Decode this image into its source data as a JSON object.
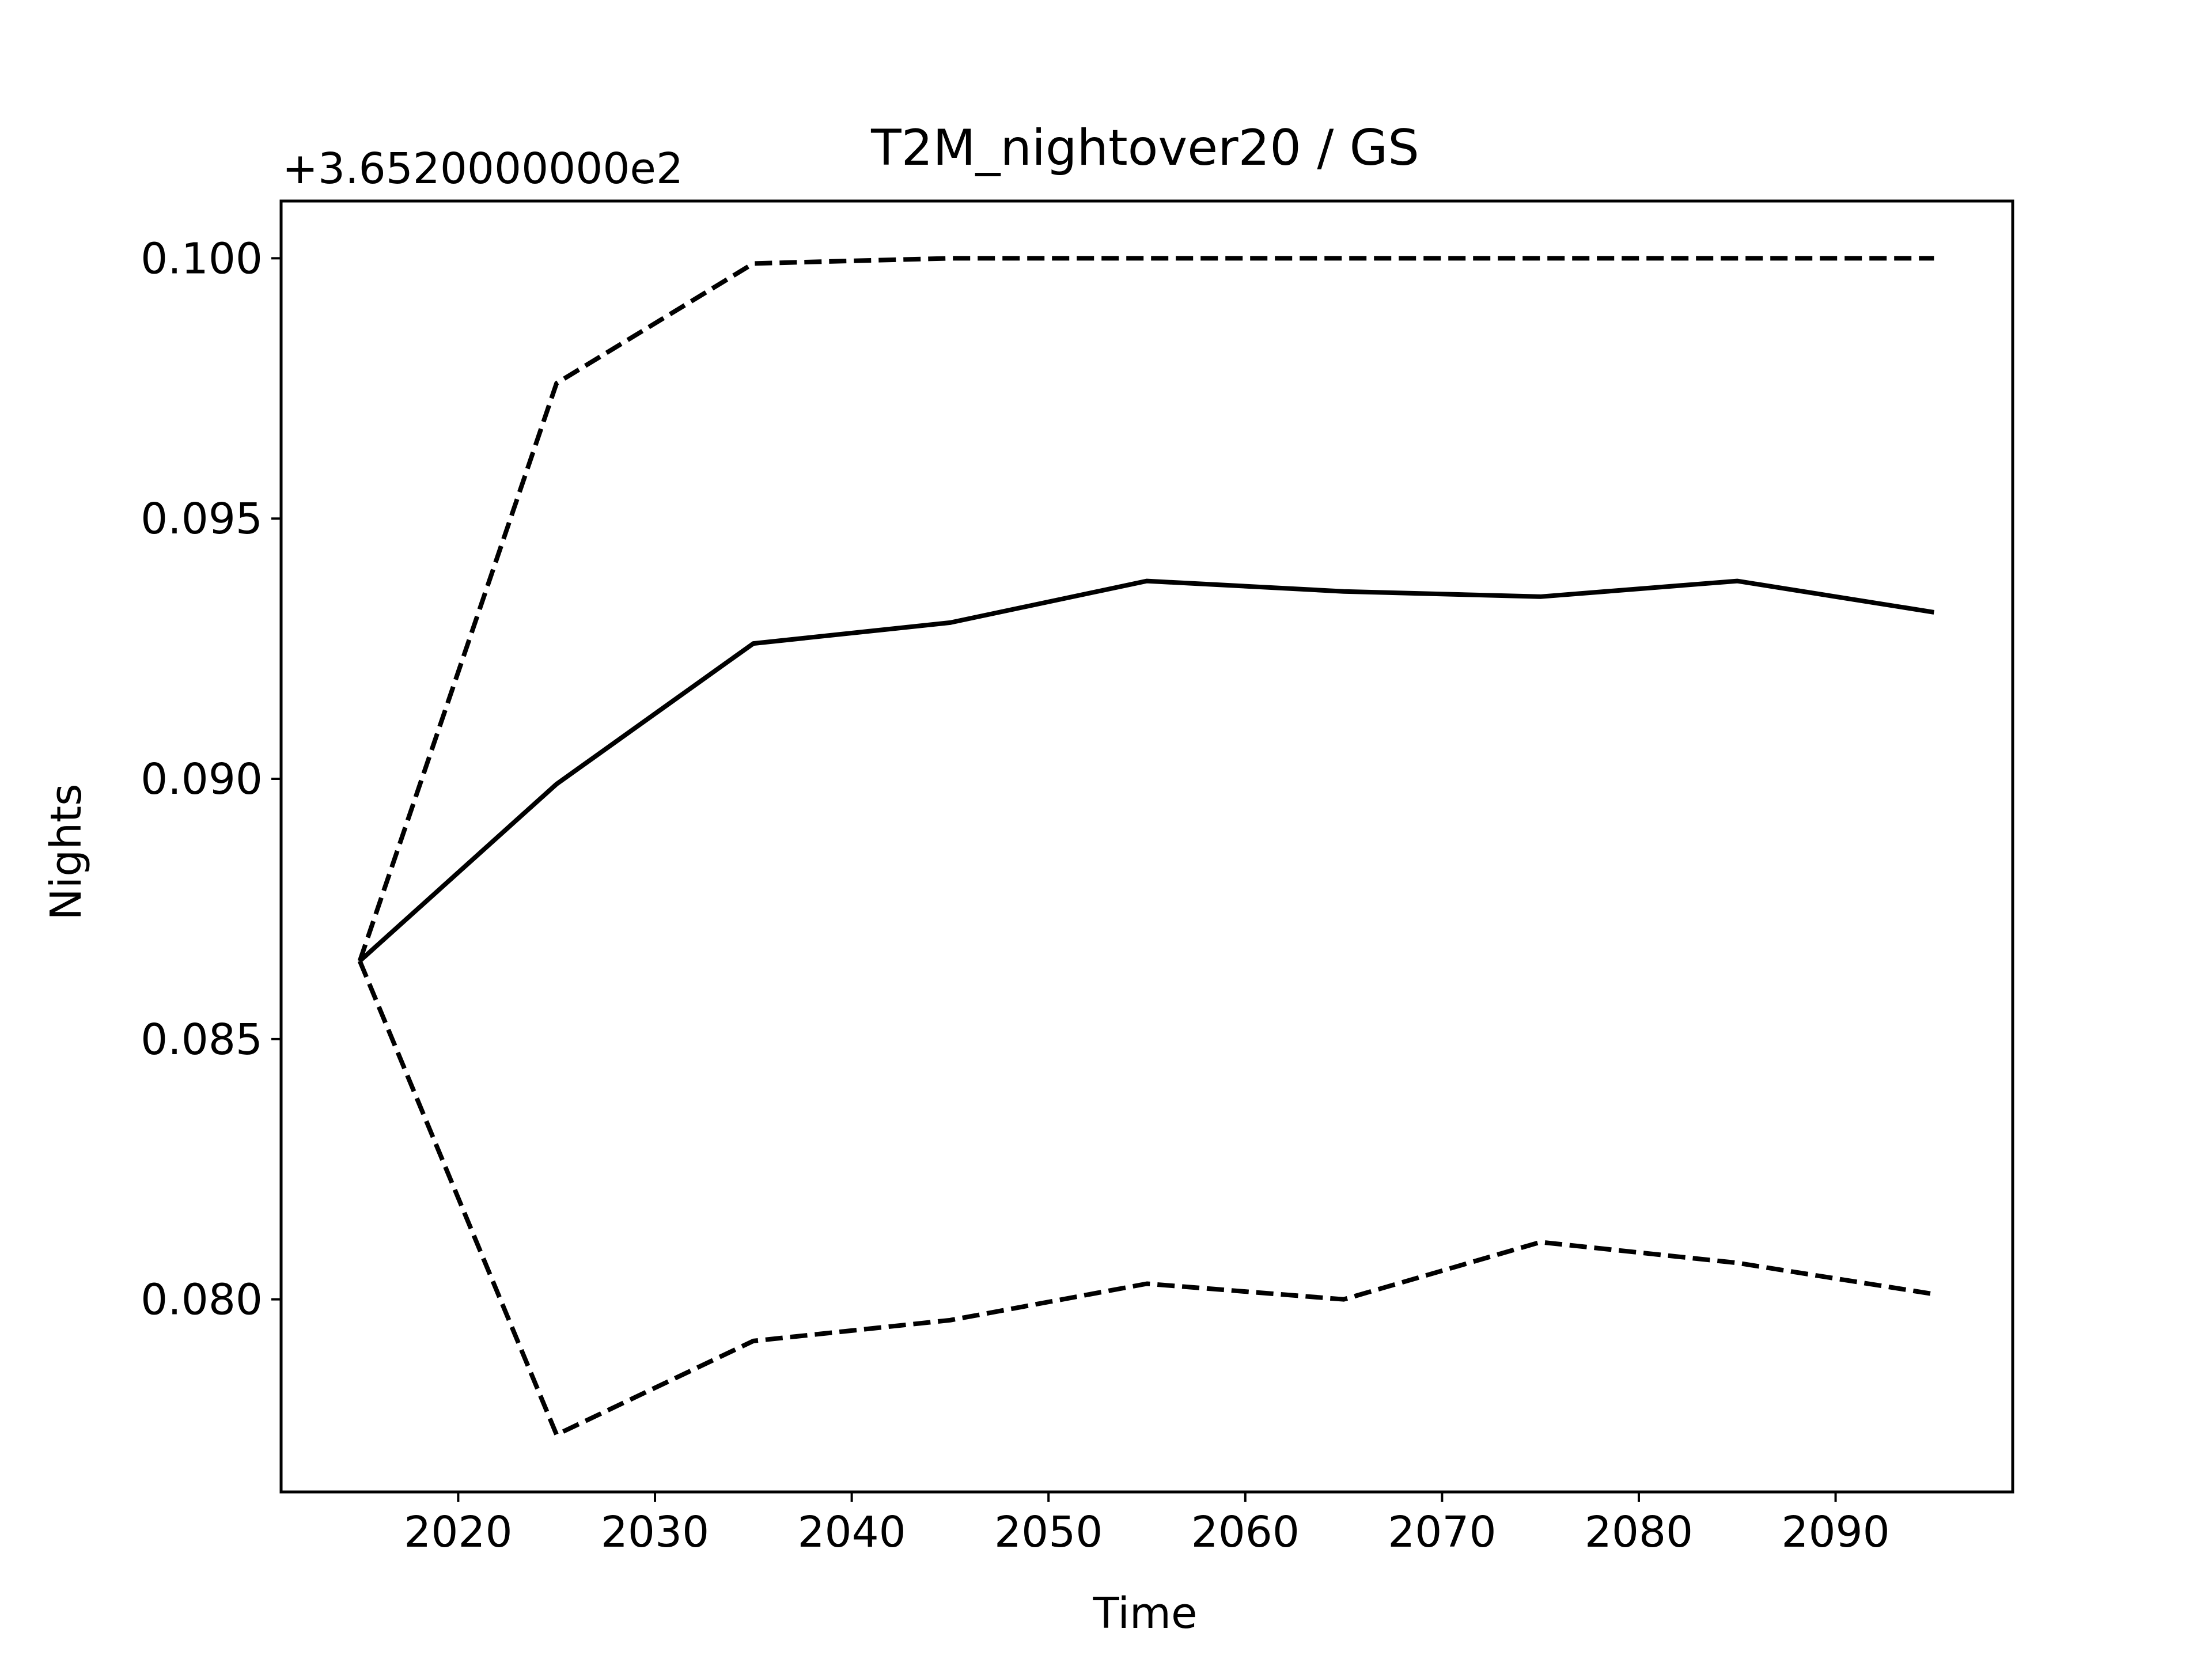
{
  "chart_data": {
    "type": "line",
    "title": "T2M_nightover20 / GS",
    "xlabel": "Time",
    "ylabel": "Nights",
    "offset_label": "+3.6520000000e2",
    "x": [
      2015,
      2025,
      2035,
      2045,
      2055,
      2065,
      2075,
      2085,
      2095
    ],
    "xlim": [
      2011,
      2099
    ],
    "ylim": [
      0.0763,
      0.1011
    ],
    "xticks": [
      2020,
      2030,
      2040,
      2050,
      2060,
      2070,
      2080,
      2090
    ],
    "yticks": [
      0.08,
      0.085,
      0.09,
      0.095,
      0.1
    ],
    "ytick_labels": [
      "0.080",
      "0.085",
      "0.090",
      "0.095",
      "0.100"
    ],
    "grid": false,
    "series": [
      {
        "style": "solid",
        "color": "#000000",
        "values": [
          0.0865,
          0.0899,
          0.0926,
          0.093,
          0.0938,
          0.0936,
          0.0935,
          0.0938,
          0.0932
        ]
      },
      {
        "style": "dashed",
        "color": "#000000",
        "values": [
          0.0865,
          0.0976,
          0.0999,
          0.1,
          0.1,
          0.1,
          0.1,
          0.1,
          0.1
        ]
      },
      {
        "style": "dashed",
        "color": "#000000",
        "values": [
          0.0865,
          0.0774,
          0.0792,
          0.0796,
          0.0803,
          0.08,
          0.0811,
          0.0807,
          0.0801
        ]
      }
    ]
  }
}
